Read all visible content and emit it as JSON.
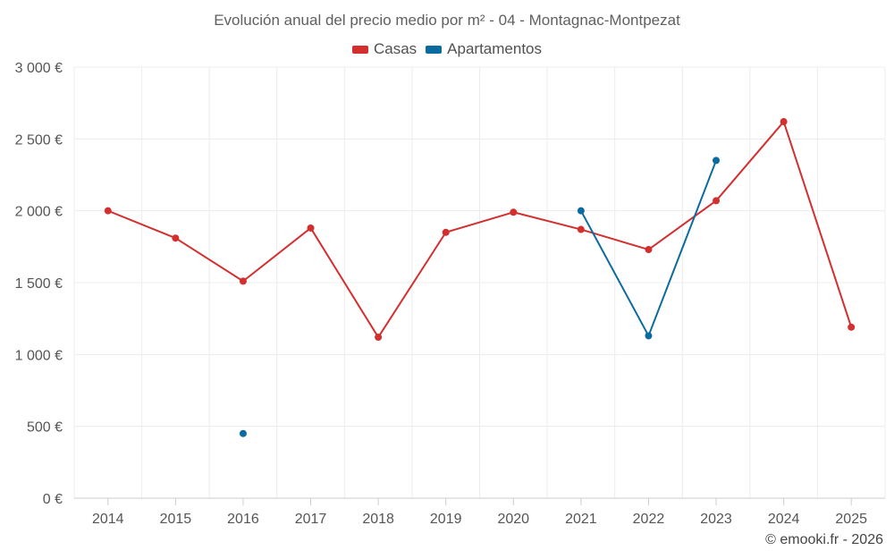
{
  "chart_data": {
    "type": "line",
    "title": "Evolución anual del precio medio por m² - 04 - Montagnac-Montpezat",
    "xlabel": "",
    "ylabel": "",
    "categories": [
      "2014",
      "2015",
      "2016",
      "2017",
      "2018",
      "2019",
      "2020",
      "2021",
      "2022",
      "2023",
      "2024",
      "2025"
    ],
    "ylim": [
      0,
      3000
    ],
    "yticks": [
      0,
      500,
      1000,
      1500,
      2000,
      2500,
      3000
    ],
    "ytick_labels": [
      "0 €",
      "500 €",
      "1 000 €",
      "1 500 €",
      "2 000 €",
      "2 500 €",
      "3 000 €"
    ],
    "grid": true,
    "legend_position": "top-center",
    "series": [
      {
        "name": "Casas",
        "color": "#d32f2f",
        "values": [
          2000,
          1810,
          1510,
          1880,
          1120,
          1850,
          1990,
          1870,
          1730,
          2070,
          2620,
          1190
        ]
      },
      {
        "name": "Apartamentos",
        "color": "#0b6b9e",
        "values": [
          null,
          null,
          450,
          null,
          null,
          null,
          null,
          2000,
          1130,
          2350,
          null,
          null
        ]
      }
    ]
  },
  "credit": "© emooki.fr - 2026"
}
